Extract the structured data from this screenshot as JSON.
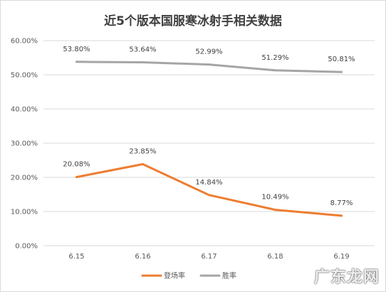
{
  "chart_data": {
    "type": "line",
    "title": "近5个版本国服寒冰射手相关数据",
    "categories": [
      "6.15",
      "6.16",
      "6.17",
      "6.18",
      "6.19"
    ],
    "series": [
      {
        "name": "登场率",
        "values": [
          20.08,
          23.85,
          14.84,
          10.49,
          8.77
        ],
        "labels": [
          "20.08%",
          "23.85%",
          "14.84%",
          "10.49%",
          "8.77%"
        ],
        "color": "#ED7D31"
      },
      {
        "name": "胜率",
        "values": [
          53.8,
          53.64,
          52.99,
          51.29,
          50.81
        ],
        "labels": [
          "53.80%",
          "53.64%",
          "52.99%",
          "51.29%",
          "50.81%"
        ],
        "color": "#A5A5A5"
      }
    ],
    "yticks": [
      "0.00%",
      "10.00%",
      "20.00%",
      "30.00%",
      "40.00%",
      "50.00%",
      "60.00%"
    ],
    "ylim": [
      0,
      60
    ],
    "grid": true,
    "legend_position": "bottom",
    "grid_color": "#D9D9D9"
  },
  "watermark": "广东龙网"
}
